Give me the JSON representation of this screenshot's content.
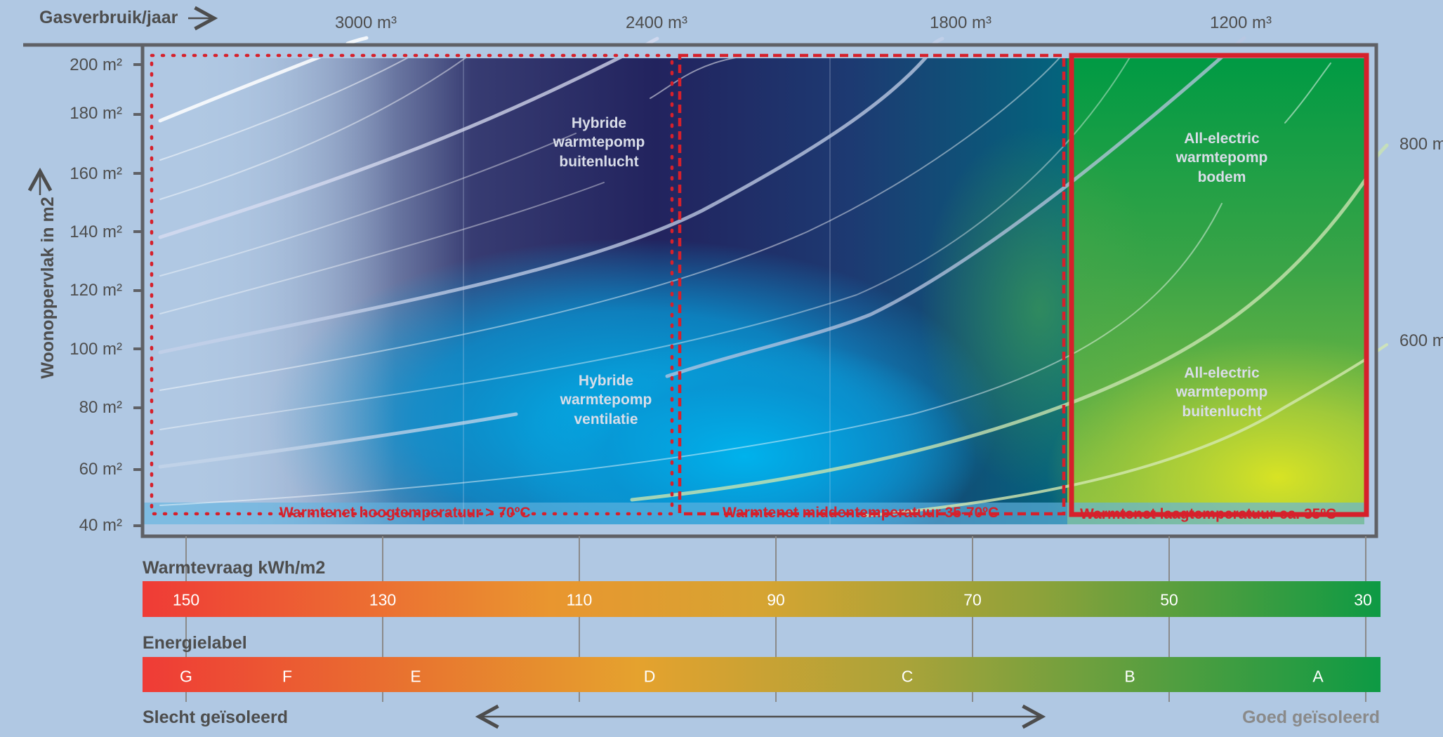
{
  "chart_data": {
    "type": "line",
    "x_axis_title": "Gasverbruik/jaar",
    "x_arrow": "→",
    "y_axis_title": "Woonoppervlak in m2",
    "y_arrow": "→",
    "ylim": [
      40,
      200
    ],
    "y_ticks": [
      "200 m²",
      "180 m²",
      "160 m²",
      "140 m²",
      "120 m²",
      "100 m²",
      "80 m²",
      "60 m²",
      "40 m²"
    ],
    "gas_labels": [
      "3000 m³",
      "2400 m³",
      "1800 m³",
      "1200 m³"
    ],
    "side_labels": [
      "800 m",
      "600 m"
    ],
    "regions": [
      {
        "lines": [
          "Hybride",
          "warmtepomp",
          "buitenlucht"
        ]
      },
      {
        "lines": [
          "Hybride",
          "warmtepomp",
          "ventilatie"
        ]
      },
      {
        "lines": [
          "All-electric",
          "warmtepomp",
          "bodem"
        ]
      },
      {
        "lines": [
          "All-electric",
          "warmtepomp",
          "buitenlucht"
        ]
      }
    ],
    "heat_networks": [
      {
        "label": "Warmtenet hoogtemperatuur > 70ºC",
        "line": "dotted"
      },
      {
        "label": "Warmtenet middentemperatuur  35-70ºC",
        "line": "dashed"
      },
      {
        "label": "Warmtenet laagtemperatuur  ca. 35ºC",
        "line": "solid"
      }
    ],
    "heat_demand": {
      "title": "Warmtevraag kWh/m2",
      "values": [
        150,
        130,
        110,
        90,
        70,
        50,
        30
      ]
    },
    "energy_label": {
      "title": "Energielabel",
      "labels": [
        "G",
        "F",
        "E",
        "D",
        "C",
        "B",
        "A"
      ]
    },
    "footer_left": "Slecht geïsoleerd",
    "footer_right": "Goed geïsoleerd",
    "colors": {
      "background": "#b0c8e3",
      "frame": "#5f6166",
      "red": "#d6202b",
      "navy": "#22235e",
      "blue": "#00a6e0",
      "teal": "#00757f",
      "green": "#009a44",
      "yellow_green": "#cde02b",
      "scale_red": "#ef3b36",
      "scale_orange": "#e89d2e",
      "scale_green": "#009a44"
    }
  }
}
